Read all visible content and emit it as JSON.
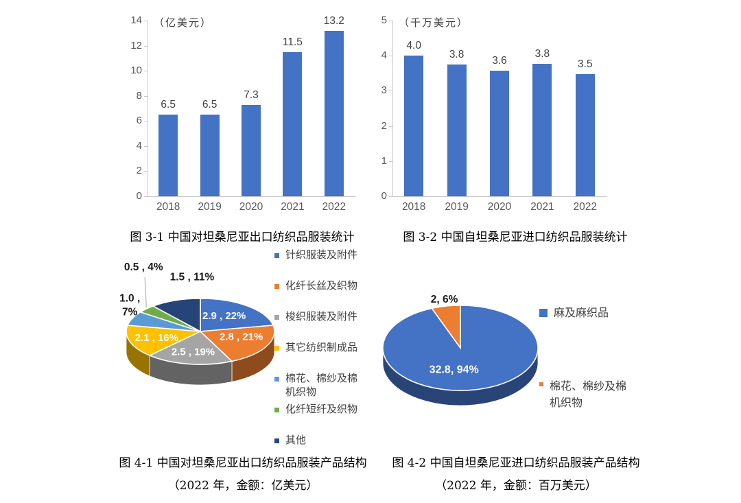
{
  "captions": {
    "fig3_1": "图 3-1 中国对坦桑尼亚出口纺织品服装统计",
    "fig3_2": "图 3-2 中国自坦桑尼亚进口纺织品服装统计",
    "fig4_1_line1": "图 4-1 中国对坦桑尼亚出口纺织品服装产品结构",
    "fig4_1_line2": "（2022 年，金额：亿美元）",
    "fig4_2_line1": "图 4-2 中国自坦桑尼亚进口纺织品服装产品结构",
    "fig4_2_line2": "（2022 年，金额：百万美元）"
  },
  "colors": {
    "bar_blue": "#4472C4",
    "axis_gray": "#C9C9C9",
    "tick_text": "#595959",
    "label_text": "#404040"
  },
  "chart_data": [
    {
      "id": "bar1",
      "type": "bar",
      "title": "图 3-1 中国对坦桑尼亚出口纺织品服装统计",
      "unit_label": "（亿美元）",
      "categories": [
        "2018",
        "2019",
        "2020",
        "2021",
        "2022"
      ],
      "values": [
        6.5,
        6.5,
        7.3,
        11.5,
        13.2
      ],
      "data_labels": [
        "6.5",
        "6.5",
        "7.3",
        "11.5",
        "13.2"
      ],
      "ylim": [
        0,
        14
      ],
      "yticks": [
        0,
        2,
        4,
        6,
        8,
        10,
        12,
        14
      ],
      "bar_color": "#4472C4",
      "grid": false,
      "legend_position": "none"
    },
    {
      "id": "bar2",
      "type": "bar",
      "title": "图 3-2 中国自坦桑尼亚进口纺织品服装统计",
      "unit_label": "（千万美元）",
      "categories": [
        "2018",
        "2019",
        "2020",
        "2021",
        "2022"
      ],
      "values": [
        4.0,
        3.75,
        3.57,
        3.76,
        3.48
      ],
      "data_labels": [
        "4.0",
        "3.8",
        "3.6",
        "3.8",
        "3.5"
      ],
      "ylim": [
        0,
        5
      ],
      "yticks": [
        0,
        1,
        2,
        3,
        4,
        5
      ],
      "bar_color": "#4472C4",
      "grid": false,
      "legend_position": "none"
    },
    {
      "id": "pie1",
      "type": "pie",
      "title": "图 4-1 中国对坦桑尼亚出口纺织品服装产品结构（2022 年，金额：亿美元）",
      "unit": "亿美元",
      "legend_position": "right",
      "slices": [
        {
          "name": "针织服装及附件",
          "value": 2.9,
          "pct": 22,
          "label": "2.9 , 22%",
          "color": "#4472C4",
          "label_placement": "inside"
        },
        {
          "name": "化纤长丝及织物",
          "value": 2.8,
          "pct": 21,
          "label": "2.8 , 21%",
          "color": "#ED7D31",
          "label_placement": "inside"
        },
        {
          "name": "梭织服装及附件",
          "value": 2.5,
          "pct": 19,
          "label": "2.5 , 19%",
          "color": "#A5A5A5",
          "label_placement": "inside"
        },
        {
          "name": "其它纺织制成品",
          "value": 2.1,
          "pct": 16,
          "label": "2.1 , 16%",
          "color": "#FFC000",
          "label_placement": "inside"
        },
        {
          "name": "棉花、棉纱及棉机织物",
          "value": 1.0,
          "pct": 7,
          "label": "1.0 ,\n7%",
          "color": "#5B9BD5",
          "label_placement": "outside"
        },
        {
          "name": "化纤短纤及织物",
          "value": 0.5,
          "pct": 4,
          "label": "0.5 , 4%",
          "color": "#70AD47",
          "label_placement": "callout"
        },
        {
          "name": "其他",
          "value": 1.5,
          "pct": 11,
          "label": "1.5 , 11%",
          "color": "#264478",
          "label_placement": "outside"
        }
      ]
    },
    {
      "id": "pie2",
      "type": "pie",
      "title": "图 4-2 中国自坦桑尼亚进口纺织品服装产品结构（2022 年，金额：百万美元）",
      "unit": "百万美元",
      "legend_position": "right",
      "slices": [
        {
          "name": "麻及麻织品",
          "value": 32.8,
          "pct": 94,
          "label": "32.8, 94%",
          "color": "#4472C4",
          "label_placement": "inside",
          "legend_marker": 12
        },
        {
          "name": "棉花、棉纱及棉机织物",
          "value": 2,
          "pct": 6,
          "label": "2, 6%",
          "color": "#ED7D31",
          "label_placement": "outside",
          "legend_marker": 6
        }
      ]
    }
  ]
}
